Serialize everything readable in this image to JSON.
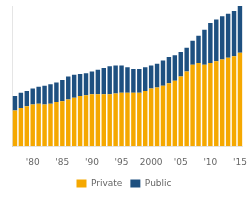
{
  "chart_data": {
    "type": "bar",
    "stacked": true,
    "categories": [
      null,
      null,
      null,
      "'80",
      null,
      null,
      null,
      null,
      "'85",
      null,
      null,
      null,
      null,
      "'90",
      null,
      null,
      null,
      null,
      "'95",
      null,
      null,
      null,
      null,
      "2000",
      null,
      null,
      null,
      null,
      "'05",
      null,
      null,
      null,
      null,
      "'10",
      null,
      null,
      null,
      null,
      "'15"
    ],
    "series": [
      {
        "name": "Private",
        "color": "#F5A800",
        "values": [
          42,
          45,
          47,
          49,
          50,
          49,
          50,
          52,
          53,
          55,
          57,
          59,
          60,
          61,
          61,
          61,
          61,
          62,
          63,
          63,
          63,
          63,
          65,
          68,
          69,
          71,
          74,
          77,
          82,
          88,
          96,
          98,
          96,
          98,
          100,
          102,
          104,
          106,
          110
        ]
      },
      {
        "name": "Public",
        "color": "#1E5080",
        "values": [
          17,
          18,
          18,
          19,
          20,
          22,
          23,
          23,
          25,
          27,
          27,
          26,
          26,
          27,
          29,
          31,
          33,
          33,
          32,
          30,
          28,
          28,
          28,
          27,
          28,
          30,
          31,
          30,
          29,
          28,
          28,
          32,
          41,
          47,
          49,
          51,
          52,
          53,
          55
        ]
      }
    ],
    "ylim": [
      0,
      165
    ],
    "yticks": [],
    "grid": false,
    "legend": "bottom",
    "tick_labels": "x"
  }
}
